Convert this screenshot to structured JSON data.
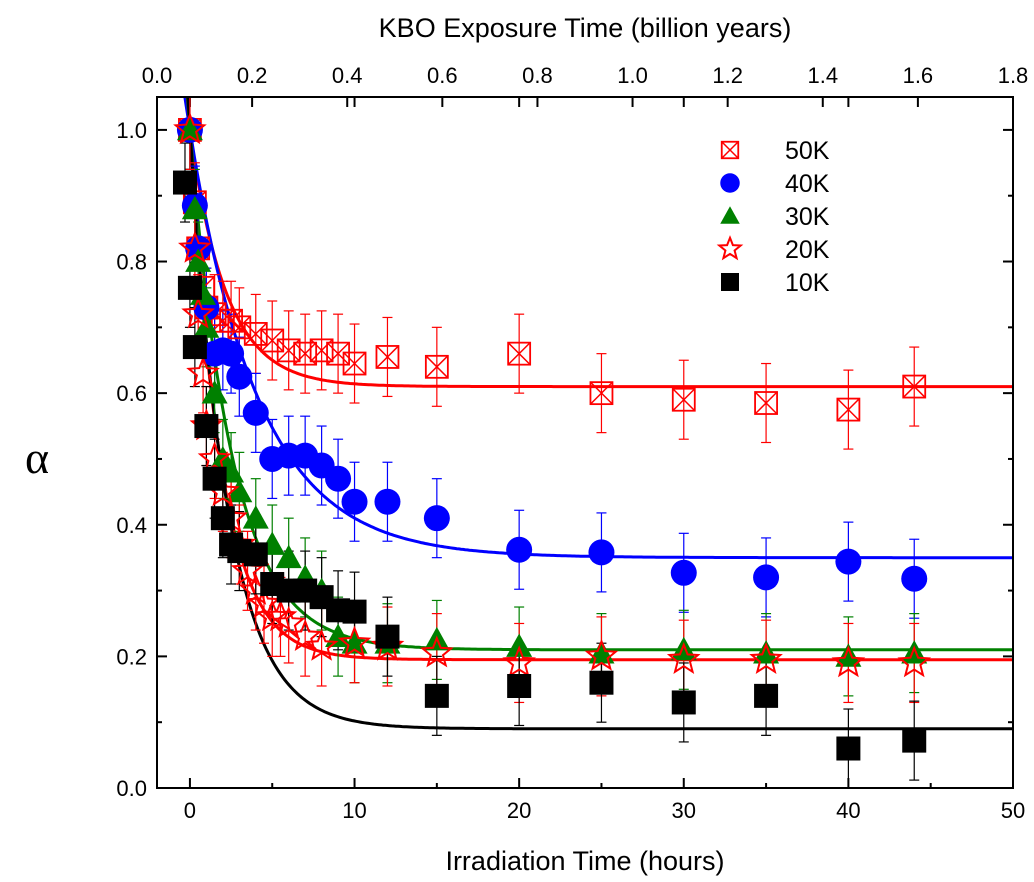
{
  "chart_data": {
    "type": "scatter",
    "xlabel": "Irradiation Time (hours)",
    "x2label": "KBO Exposure Time (billion years)",
    "ylabel": "α",
    "xlim": [
      -2,
      50
    ],
    "ylim": [
      0,
      1.05
    ],
    "x2lim": [
      0,
      1.8
    ],
    "xticks": [
      "0",
      "10",
      "20",
      "30",
      "40",
      "50"
    ],
    "yticks": [
      "0.0",
      "0.2",
      "0.4",
      "0.6",
      "0.8",
      "1.0"
    ],
    "x2ticks": [
      "0.0",
      "0.2",
      "0.4",
      "0.6",
      "0.8",
      "1.0",
      "1.2",
      "1.4",
      "1.6",
      "1.8"
    ],
    "legend_position": "top-right",
    "series": [
      {
        "name": "50K",
        "color": "#ff0000",
        "marker": "crossed-square",
        "fit": {
          "c": 0.61,
          "a": 0.39,
          "tau": 2.2
        },
        "points": [
          [
            0,
            1.0,
            0.06
          ],
          [
            0.3,
            0.89,
            0.06
          ],
          [
            0.5,
            0.82,
            0.06
          ],
          [
            0.8,
            0.76,
            0.06
          ],
          [
            1,
            0.73,
            0.06
          ],
          [
            1.5,
            0.72,
            0.06
          ],
          [
            2,
            0.71,
            0.06
          ],
          [
            2.5,
            0.71,
            0.06
          ],
          [
            3,
            0.7,
            0.06
          ],
          [
            4,
            0.69,
            0.06
          ],
          [
            5,
            0.68,
            0.06
          ],
          [
            6,
            0.665,
            0.06
          ],
          [
            7,
            0.66,
            0.06
          ],
          [
            8,
            0.665,
            0.06
          ],
          [
            9,
            0.66,
            0.06
          ],
          [
            10,
            0.645,
            0.06
          ],
          [
            12,
            0.655,
            0.06
          ],
          [
            15,
            0.64,
            0.06
          ],
          [
            20,
            0.66,
            0.06
          ],
          [
            25,
            0.6,
            0.06
          ],
          [
            30,
            0.59,
            0.06
          ],
          [
            35,
            0.585,
            0.06
          ],
          [
            40,
            0.575,
            0.06
          ],
          [
            44,
            0.61,
            0.06
          ]
        ]
      },
      {
        "name": "40K",
        "color": "#0000ff",
        "marker": "circle",
        "fit": {
          "c": 0.35,
          "a": 0.65,
          "tau": 4.2
        },
        "points": [
          [
            0,
            1.0,
            0.06
          ],
          [
            0.3,
            0.885,
            0.06
          ],
          [
            0.5,
            0.82,
            0.06
          ],
          [
            1,
            0.73,
            0.06
          ],
          [
            1.5,
            0.66,
            0.06
          ],
          [
            2,
            0.665,
            0.06
          ],
          [
            2.5,
            0.66,
            0.06
          ],
          [
            3,
            0.625,
            0.06
          ],
          [
            4,
            0.57,
            0.06
          ],
          [
            5,
            0.5,
            0.06
          ],
          [
            6,
            0.505,
            0.06
          ],
          [
            7,
            0.505,
            0.06
          ],
          [
            8,
            0.49,
            0.06
          ],
          [
            9,
            0.47,
            0.06
          ],
          [
            10,
            0.435,
            0.06
          ],
          [
            12,
            0.435,
            0.06
          ],
          [
            15,
            0.41,
            0.06
          ],
          [
            20,
            0.362,
            0.06
          ],
          [
            25,
            0.358,
            0.06
          ],
          [
            30,
            0.327,
            0.06
          ],
          [
            35,
            0.32,
            0.06
          ],
          [
            40,
            0.344,
            0.06
          ],
          [
            44,
            0.318,
            0.06
          ]
        ]
      },
      {
        "name": "30K",
        "color": "#008000",
        "marker": "triangle",
        "fit": {
          "c": 0.21,
          "a": 0.79,
          "tau": 2.6
        },
        "points": [
          [
            0,
            1.0,
            0.06
          ],
          [
            0.3,
            0.88,
            0.06
          ],
          [
            0.5,
            0.8,
            0.06
          ],
          [
            0.8,
            0.75,
            0.06
          ],
          [
            1,
            0.7,
            0.06
          ],
          [
            1.5,
            0.6,
            0.06
          ],
          [
            2,
            0.5,
            0.06
          ],
          [
            2.5,
            0.48,
            0.06
          ],
          [
            3,
            0.45,
            0.06
          ],
          [
            4,
            0.41,
            0.06
          ],
          [
            5,
            0.37,
            0.06
          ],
          [
            6,
            0.35,
            0.06
          ],
          [
            7,
            0.32,
            0.06
          ],
          [
            8,
            0.3,
            0.06
          ],
          [
            9,
            0.23,
            0.06
          ],
          [
            10,
            0.22,
            0.06
          ],
          [
            12,
            0.22,
            0.06
          ],
          [
            15,
            0.225,
            0.06
          ],
          [
            20,
            0.215,
            0.06
          ],
          [
            25,
            0.205,
            0.06
          ],
          [
            30,
            0.21,
            0.06
          ],
          [
            35,
            0.205,
            0.06
          ],
          [
            40,
            0.2,
            0.06
          ],
          [
            44,
            0.205,
            0.06
          ]
        ]
      },
      {
        "name": "20K",
        "color": "#ff0000",
        "marker": "star",
        "fit": {
          "c": 0.195,
          "a": 0.805,
          "tau": 1.9
        },
        "points": [
          [
            0,
            1.0,
            0.06
          ],
          [
            0.3,
            0.82,
            0.06
          ],
          [
            0.5,
            0.72,
            0.06
          ],
          [
            0.8,
            0.63,
            0.06
          ],
          [
            1,
            0.55,
            0.06
          ],
          [
            1.5,
            0.5,
            0.06
          ],
          [
            2,
            0.45,
            0.06
          ],
          [
            2.5,
            0.41,
            0.06
          ],
          [
            3,
            0.37,
            0.06
          ],
          [
            3.5,
            0.33,
            0.06
          ],
          [
            4,
            0.3,
            0.06
          ],
          [
            4.5,
            0.28,
            0.06
          ],
          [
            5,
            0.26,
            0.06
          ],
          [
            5.5,
            0.26,
            0.06
          ],
          [
            6,
            0.25,
            0.06
          ],
          [
            7,
            0.23,
            0.06
          ],
          [
            8,
            0.215,
            0.06
          ],
          [
            10,
            0.22,
            0.06
          ],
          [
            12,
            0.215,
            0.06
          ],
          [
            15,
            0.205,
            0.06
          ],
          [
            20,
            0.19,
            0.06
          ],
          [
            25,
            0.2,
            0.06
          ],
          [
            30,
            0.195,
            0.06
          ],
          [
            35,
            0.195,
            0.06
          ],
          [
            40,
            0.19,
            0.06
          ],
          [
            44,
            0.19,
            0.06
          ]
        ]
      },
      {
        "name": "10K",
        "color": "#000000",
        "marker": "square",
        "fit": {
          "c": 0.09,
          "a": 0.91,
          "tau": 2.3
        },
        "points": [
          [
            -0.3,
            0.92,
            0.06
          ],
          [
            0,
            0.76,
            0.06
          ],
          [
            0.3,
            0.67,
            0.06
          ],
          [
            1,
            0.55,
            0.06
          ],
          [
            1.5,
            0.47,
            0.06
          ],
          [
            2,
            0.41,
            0.06
          ],
          [
            2.5,
            0.37,
            0.06
          ],
          [
            3,
            0.36,
            0.06
          ],
          [
            4,
            0.355,
            0.06
          ],
          [
            5,
            0.31,
            0.06
          ],
          [
            6,
            0.3,
            0.06
          ],
          [
            7,
            0.3,
            0.06
          ],
          [
            8,
            0.29,
            0.06
          ],
          [
            9,
            0.27,
            0.06
          ],
          [
            10,
            0.268,
            0.06
          ],
          [
            12,
            0.23,
            0.06
          ],
          [
            15,
            0.14,
            0.06
          ],
          [
            20,
            0.155,
            0.06
          ],
          [
            25,
            0.16,
            0.06
          ],
          [
            30,
            0.13,
            0.06
          ],
          [
            35,
            0.14,
            0.06
          ],
          [
            40,
            0.06,
            0.06
          ],
          [
            44,
            0.072,
            0.06
          ]
        ]
      }
    ]
  }
}
